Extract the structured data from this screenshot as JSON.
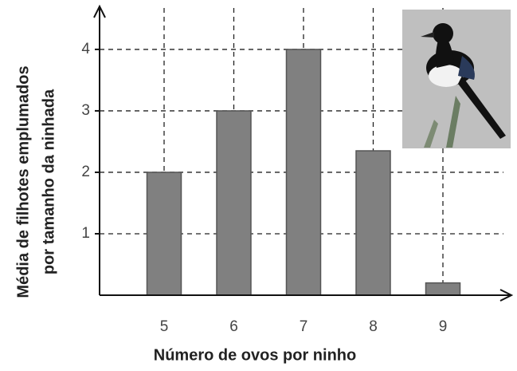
{
  "chart_data": {
    "type": "bar",
    "x_label": "Número de ovos por ninho",
    "y_label_lines": [
      "Média de filhotes emplumados",
      "por tamanho da ninhada"
    ],
    "categories": [
      "5",
      "6",
      "7",
      "8",
      "9"
    ],
    "values": [
      2.0,
      3.0,
      4.0,
      2.35,
      0.2
    ],
    "color": "#808080",
    "ylim": [
      0,
      4.7
    ],
    "yticks": [
      1,
      2,
      3,
      4
    ],
    "grid": true
  }
}
